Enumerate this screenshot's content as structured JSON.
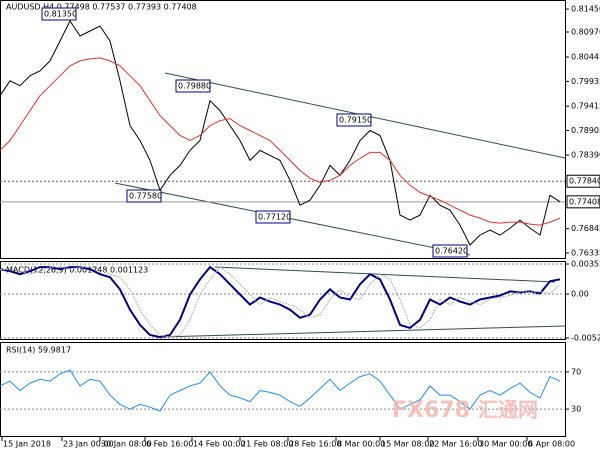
{
  "chart_data": [
    {
      "type": "line",
      "title": "AUDUSD,H4  0.77498 0.77537 0.77393 0.77408",
      "xlim": [
        0,
        56.5
      ],
      "xticks": [
        {
          "value": 0.2,
          "label": "15 Jan 2018"
        },
        {
          "value": 6.2,
          "label": "23 Jan 00:00"
        },
        {
          "value": 10,
          "label": "30 Jan 08:00"
        },
        {
          "value": 14.5,
          "label": "6 Feb 16:00"
        },
        {
          "value": 19.2,
          "label": "14 Feb 00:00"
        },
        {
          "value": 24,
          "label": "21 Feb 08:00"
        },
        {
          "value": 28.8,
          "label": "28 Feb 16:00"
        },
        {
          "value": 33.6,
          "label": "8 Mar 00:00"
        },
        {
          "value": 38,
          "label": "15 Mar 08:00"
        },
        {
          "value": 42.8,
          "label": "22 Mar 16:00"
        },
        {
          "value": 47.8,
          "label": "30 Mar 00:00"
        },
        {
          "value": 52.7,
          "label": "6 Apr 08:00"
        }
      ],
      "ylim": [
        0.7623,
        0.8162
      ],
      "yticks": [
        {
          "value": 0.8145,
          "label": "0.81450"
        },
        {
          "value": 0.8097,
          "label": "0.80970"
        },
        {
          "value": 0.80445,
          "label": "0.80445"
        },
        0.79935,
        0.79415,
        0.78905,
        {
          "value": 0.7839,
          "label": "0.78390"
        },
        0.76845,
        0.76335
      ],
      "level": {
        "value": 0.7784,
        "label": "0.77840"
      },
      "last_price": 0.77408,
      "annotations": [
        "0.81350",
        "0.79880",
        "0.79150",
        "0.77580",
        "0.77120",
        "0.76420"
      ],
      "series": [
        {
          "color": "#000000",
          "values": [
            0.79634,
            0.79947,
            0.79843,
            0.80051,
            0.80156,
            0.80364,
            0.80782,
            0.812,
            0.80886,
            0.80991,
            0.81095,
            0.80782,
            0.79947,
            0.79007,
            0.78694,
            0.78277,
            0.7765,
            0.77964,
            0.78172,
            0.78486,
            0.78694,
            0.79529,
            0.79321,
            0.79007,
            0.78694,
            0.78277,
            0.78486,
            0.78381,
            0.78277,
            0.77859,
            0.77337,
            0.77442,
            0.77755,
            0.78172,
            0.77964,
            0.78277,
            0.78694,
            0.78903,
            0.78799,
            0.78277,
            0.77129,
            0.77024,
            0.77129,
            0.77546,
            0.77337,
            0.77233,
            0.7692,
            0.76502,
            0.76711,
            0.76815,
            0.76711,
            0.76857,
            0.77024,
            0.76857,
            0.76711,
            0.77546,
            0.77408
          ]
        },
        {
          "color": "#e8302a",
          "values": [
            0.78486,
            0.78694,
            0.79007,
            0.79321,
            0.79634,
            0.79843,
            0.80051,
            0.8026,
            0.80364,
            0.80406,
            0.80427,
            0.80364,
            0.8026,
            0.80051,
            0.79843,
            0.79529,
            0.79216,
            0.79007,
            0.78799,
            0.78694,
            0.78799,
            0.79007,
            0.79112,
            0.79154,
            0.79007,
            0.78903,
            0.78799,
            0.78694,
            0.78486,
            0.78277,
            0.78065,
            0.77901,
            0.77817,
            0.77859,
            0.77964,
            0.78172,
            0.78318,
            0.78444,
            0.78444,
            0.78277,
            0.77964,
            0.77755,
            0.77606,
            0.77522,
            0.77442,
            0.77337,
            0.77233,
            0.77129,
            0.77066,
            0.76982,
            0.76961,
            0.76982,
            0.76982,
            0.7694,
            0.7692,
            0.76982,
            0.77066
          ]
        }
      ]
    },
    {
      "type": "line",
      "title": "MACD(12,26,9) 0.001748 0.001123",
      "xlim": [
        0,
        56.5
      ],
      "ylim": [
        -0.005207,
        0.003559
      ],
      "yticks": [
        0.003559,
        {
          "value": 0,
          "label": "0.00"
        },
        -0.005207
      ],
      "series": [
        {
          "color": "#000080",
          "values": [
            0.00295,
            0.00271,
            0.00235,
            0.00271,
            0.00319,
            0.00319,
            0.00295,
            0.00319,
            0.00319,
            0.00295,
            0.00235,
            0.00199,
            0.00055,
            -0.00185,
            -0.00365,
            -0.00485,
            -0.0051,
            -0.00485,
            -0.00305,
            -5e-05,
            0.00175,
            0.00319,
            0.00235,
            0.00115,
            -5e-05,
            -0.00125,
            -0.00041,
            -0.00089,
            -0.00125,
            -0.00185,
            -0.00281,
            -0.00245,
            -0.00065,
            0.00055,
            -0.00041,
            -0.00065,
            0.00115,
            0.00235,
            0.00175,
            -0.00065,
            -0.00365,
            -0.00401,
            -0.00305,
            -0.00065,
            -0.00125,
            -0.00041,
            -0.00089,
            -0.00125,
            -0.00065,
            -0.00041,
            -0.00017,
            0.00031,
            0.00019,
            0.00031,
            7e-05,
            0.00151,
            0.00175
          ]
        },
        {
          "color": "#b0b0b0",
          "values": [
            0.0029,
            0.00295,
            0.00271,
            0.00235,
            0.00271,
            0.00319,
            0.00319,
            0.00295,
            0.00319,
            0.00319,
            0.00295,
            0.00235,
            0.00199,
            0.00055,
            -0.00185,
            -0.00365,
            -0.00485,
            -0.0051,
            -0.00485,
            -0.00305,
            -5e-05,
            0.00175,
            0.00319,
            0.00235,
            0.00115,
            -5e-05,
            -0.00125,
            -0.00041,
            -0.00089,
            -0.00125,
            -0.00185,
            -0.00281,
            -0.00245,
            -0.00065,
            0.00055,
            -0.00041,
            -0.00065,
            0.00115,
            0.00235,
            0.00175,
            -0.00065,
            -0.00365,
            -0.00401,
            -0.00305,
            -0.00065,
            -0.00125,
            -0.00041,
            -0.00089,
            -0.00125,
            -0.00065,
            -0.00041,
            -0.00017,
            0.00031,
            0.00019,
            0.00031,
            7e-05,
            0.00112
          ]
        }
      ]
    },
    {
      "type": "line",
      "title": "RSI(14) 59.9817",
      "xlim": [
        0,
        56.5
      ],
      "ylim": [
        0,
        100
      ],
      "yticks": [
        70,
        30
      ],
      "watermark": [
        "FX678",
        "汇通网"
      ],
      "series": [
        {
          "color": "#1e90ff",
          "values": [
            55,
            60,
            50,
            58,
            62,
            60,
            68,
            72,
            55,
            62,
            60,
            45,
            35,
            30,
            35,
            32,
            28,
            45,
            50,
            55,
            58,
            70,
            55,
            45,
            42,
            38,
            50,
            48,
            45,
            38,
            33,
            42,
            52,
            62,
            50,
            58,
            65,
            68,
            60,
            45,
            30,
            35,
            40,
            55,
            45,
            45,
            38,
            30,
            45,
            50,
            45,
            52,
            58,
            48,
            42,
            65,
            59.9817
          ]
        }
      ]
    }
  ]
}
